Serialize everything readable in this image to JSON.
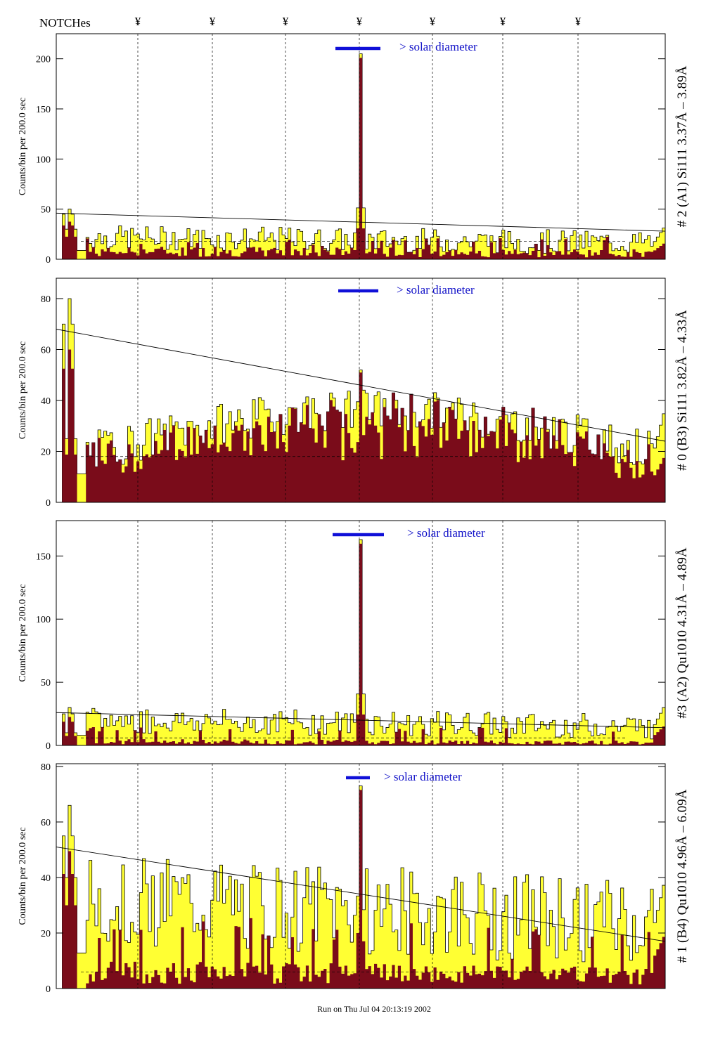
{
  "header": {
    "notches_label": "NOTCHes",
    "notch_symbol": "¥"
  },
  "footer": {
    "run_text": "Run on Thu Jul 04 20:13:19 2002"
  },
  "colors": {
    "fill": "#ffff33",
    "dark": "#7a0c1a",
    "solar_bar": "#1010d8",
    "solar_text": "#1010c8"
  },
  "chart_data": [
    {
      "type": "histogram",
      "ylabel": "Counts/bin per   200.0 sec",
      "side_label": "# 2 (A1) Si111  3.37Å – 3.89Å",
      "solar_label": "> solar diameter",
      "ylim": [
        0,
        225
      ],
      "yticks": [
        0,
        50,
        100,
        150,
        200
      ],
      "peak": 205,
      "left_edge": [
        30,
        50,
        45
      ],
      "base_level": 22,
      "noise": 12,
      "dark_level": 8,
      "trend_line": [
        46,
        28
      ],
      "mean_level": 18
    },
    {
      "type": "histogram",
      "ylabel": "Counts/bin per   200.0 sec",
      "side_label": "# 0 (B3) Si111  3.82Å – 4.33Å",
      "solar_label": "> solar diameter",
      "ylim": [
        0,
        88
      ],
      "yticks": [
        0,
        20,
        40,
        60,
        80
      ],
      "peak": 52,
      "left_edge": [
        25,
        80,
        70
      ],
      "base_level": 28,
      "noise": 8,
      "dark_level": 12,
      "trend_line": [
        68,
        24
      ],
      "mean_level": 18
    },
    {
      "type": "histogram",
      "ylabel": "Counts/bin per   200.0 sec",
      "side_label": "#3 (A2) Qu1010  4.31Å – 4.89Å",
      "solar_label": "> solar diameter",
      "ylim": [
        0,
        178
      ],
      "yticks": [
        0,
        50,
        100,
        150
      ],
      "peak": 163,
      "left_edge": [
        10,
        30,
        25
      ],
      "base_level": 20,
      "noise": 10,
      "dark_level": 3,
      "trend_line": [
        26,
        14
      ],
      "mean_level": 6
    },
    {
      "type": "histogram",
      "ylabel": "Counts/bin per   200.0 sec",
      "side_label": "# 1 (B4) Qu1010 4.96Å – 6.09Å",
      "solar_label": "> solar diameter",
      "ylim": [
        0,
        81
      ],
      "yticks": [
        0,
        20,
        40,
        60,
        80
      ],
      "peak": 73,
      "left_edge": [
        40,
        66,
        55
      ],
      "base_level": 32,
      "noise": 16,
      "dark_level": 6,
      "trend_line": [
        51,
        17
      ],
      "mean_level": 6
    }
  ]
}
